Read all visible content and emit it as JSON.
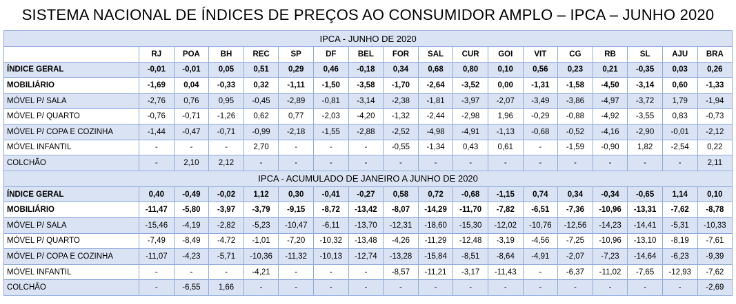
{
  "title": "SISTEMA NACIONAL DE ÍNDICES DE PREÇOS AO CONSUMIDOR AMPLO – IPCA – JUNHO 2020",
  "columns": [
    "RJ",
    "POA",
    "BH",
    "REC",
    "SP",
    "DF",
    "BEL",
    "FOR",
    "SAL",
    "CUR",
    "GOI",
    "VIT",
    "CG",
    "RB",
    "SL",
    "AJU",
    "BRA"
  ],
  "sections": [
    {
      "heading": "IPCA - JUNHO DE 2020",
      "rows": [
        {
          "label": "ÍNDICE GERAL",
          "values": [
            "-0,01",
            "-0,01",
            "0,05",
            "0,51",
            "0,29",
            "0,46",
            "-0,18",
            "0,34",
            "0,68",
            "0,80",
            "0,10",
            "0,56",
            "0,23",
            "0,21",
            "-0,35",
            "0,03",
            "0,26"
          ]
        },
        {
          "label": "MOBILIÁRIO",
          "values": [
            "-1,69",
            "0,04",
            "-0,33",
            "0,32",
            "-1,11",
            "-1,50",
            "-3,58",
            "-1,70",
            "-2,64",
            "-3,52",
            "0,00",
            "-1,31",
            "-1,58",
            "-4,50",
            "-3,14",
            "0,60",
            "-1,33"
          ]
        },
        {
          "label": "MÓVEL P/ SALA",
          "values": [
            "-2,76",
            "0,76",
            "0,95",
            "-0,45",
            "-2,89",
            "-0,81",
            "-3,14",
            "-2,38",
            "-1,81",
            "-3,97",
            "-2,07",
            "-3,49",
            "-3,86",
            "-4,97",
            "-3,72",
            "1,79",
            "-1,94"
          ]
        },
        {
          "label": "MÓVEL P/ QUARTO",
          "values": [
            "-0,76",
            "-0,71",
            "-1,26",
            "0,62",
            "0,77",
            "-2,03",
            "-4,20",
            "-1,32",
            "-2,44",
            "-2,98",
            "1,96",
            "-0,29",
            "-0,88",
            "-4,92",
            "-3,55",
            "0,83",
            "-0,73"
          ]
        },
        {
          "label": "MÓVEL P/ COPA E COZINHA",
          "values": [
            "-1,44",
            "-0,47",
            "-0,71",
            "-0,99",
            "-2,18",
            "-1,55",
            "-2,88",
            "-2,52",
            "-4,98",
            "-4,91",
            "-1,13",
            "-0,68",
            "-0,52",
            "-4,16",
            "-2,90",
            "-0,01",
            "-2,12"
          ]
        },
        {
          "label": "MÓVEL INFANTIL",
          "values": [
            "-",
            "-",
            "-",
            "2,70",
            "-",
            "-",
            "-",
            "-0,55",
            "-1,34",
            "0,43",
            "0,61",
            "-",
            "-1,59",
            "-0,90",
            "1,82",
            "-2,54",
            "0,22"
          ]
        },
        {
          "label": "COLCHÃO",
          "values": [
            "-",
            "2,10",
            "2,12",
            "-",
            "-",
            "-",
            "-",
            "-",
            "-",
            "-",
            "-",
            "-",
            "-",
            "-",
            "-",
            "-",
            "2,11"
          ]
        }
      ]
    },
    {
      "heading": "IPCA - ACUMULADO DE JANEIRO A JUNHO DE 2020",
      "rows": [
        {
          "label": "ÍNDICE GERAL",
          "values": [
            "0,40",
            "-0,49",
            "-0,02",
            "1,12",
            "0,30",
            "-0,41",
            "-0,27",
            "0,58",
            "0,72",
            "-0,68",
            "-1,15",
            "0,74",
            "0,34",
            "-0,34",
            "-0,65",
            "1,14",
            "0,10"
          ]
        },
        {
          "label": "MOBILIÁRIO",
          "values": [
            "-11,47",
            "-5,80",
            "-3,97",
            "-3,79",
            "-9,15",
            "-8,72",
            "-13,42",
            "-8,07",
            "-14,29",
            "-11,70",
            "-7,82",
            "-6,51",
            "-7,36",
            "-10,96",
            "-13,31",
            "-7,62",
            "-8,78"
          ]
        },
        {
          "label": "MÓVEL P/ SALA",
          "values": [
            "-15,46",
            "-4,19",
            "-2,82",
            "-5,23",
            "-10,47",
            "-6,11",
            "-13,70",
            "-12,31",
            "-18,60",
            "-15,30",
            "-12,02",
            "-10,76",
            "-12,56",
            "-14,23",
            "-14,41",
            "-5,31",
            "-10,33"
          ]
        },
        {
          "label": "MÓVEL P/ QUARTO",
          "values": [
            "-7,49",
            "-8,49",
            "-4,72",
            "-1,01",
            "-7,20",
            "-10,32",
            "-13,48",
            "-4,26",
            "-11,29",
            "-12,48",
            "-3,19",
            "-4,56",
            "-7,25",
            "-10,96",
            "-13,10",
            "-8,19",
            "-7,61"
          ]
        },
        {
          "label": "MÓVEL P/ COPA E COZINHA",
          "values": [
            "-11,07",
            "-4,23",
            "-5,71",
            "-10,36",
            "-11,32",
            "-10,13",
            "-12,74",
            "-13,28",
            "-15,84",
            "-8,51",
            "-8,64",
            "-4,91",
            "-2,07",
            "-7,23",
            "-14,64",
            "-6,23",
            "-9,39"
          ]
        },
        {
          "label": "MÓVEL INFANTIL",
          "values": [
            "-",
            "-",
            "-",
            "-4,21",
            "-",
            "-",
            "-",
            "-8,57",
            "-11,21",
            "-3,17",
            "-11,43",
            "-",
            "-6,37",
            "-11,02",
            "-7,65",
            "-12,93",
            "-7,62"
          ]
        },
        {
          "label": "COLCHÃO",
          "values": [
            "-",
            "-6,55",
            "1,66",
            "-",
            "-",
            "-",
            "-",
            "-",
            "-",
            "-",
            "-",
            "-",
            "-",
            "-",
            "-",
            "-",
            "-2,69"
          ]
        }
      ]
    }
  ],
  "colors": {
    "border": "#8eaadb",
    "shade": "#dae3f3"
  }
}
